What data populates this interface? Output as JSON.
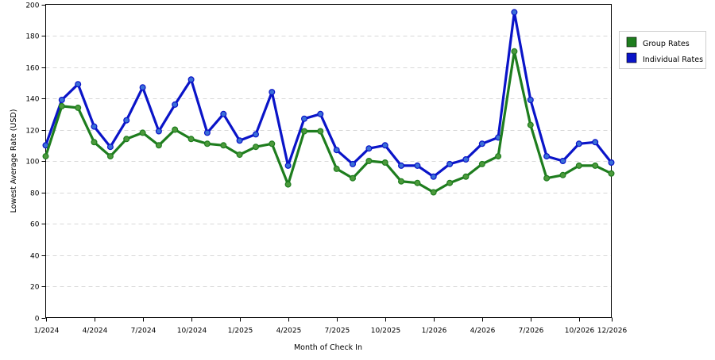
{
  "chart_data": {
    "type": "line",
    "title": "",
    "xlabel": "Month of Check In",
    "ylabel": "Lowest Average Rate (USD)",
    "ylim": [
      0,
      200
    ],
    "yticks": [
      0,
      20,
      40,
      60,
      80,
      100,
      120,
      140,
      160,
      180,
      200
    ],
    "grid": true,
    "legend_position": "right",
    "x": [
      "1/2024",
      "2/2024",
      "3/2024",
      "4/2024",
      "5/2024",
      "6/2024",
      "7/2024",
      "8/2024",
      "9/2024",
      "10/2024",
      "11/2024",
      "12/2024",
      "1/2025",
      "2/2025",
      "3/2025",
      "4/2025",
      "5/2025",
      "6/2025",
      "7/2025",
      "8/2025",
      "9/2025",
      "10/2025",
      "11/2025",
      "12/2025",
      "1/2026",
      "2/2026",
      "3/2026",
      "4/2026",
      "5/2026",
      "6/2026",
      "7/2026",
      "8/2026",
      "9/2026",
      "10/2026",
      "11/2026",
      "12/2026"
    ],
    "xtick_labels": [
      {
        "label": "1/2024",
        "index": 0
      },
      {
        "label": "4/2024",
        "index": 3
      },
      {
        "label": "7/2024",
        "index": 6
      },
      {
        "label": "10/2024",
        "index": 9
      },
      {
        "label": "1/2025",
        "index": 12
      },
      {
        "label": "4/2025",
        "index": 15
      },
      {
        "label": "7/2025",
        "index": 18
      },
      {
        "label": "10/2025",
        "index": 21
      },
      {
        "label": "1/2026",
        "index": 24
      },
      {
        "label": "4/2026",
        "index": 27
      },
      {
        "label": "7/2026",
        "index": 30
      },
      {
        "label": "10/2026",
        "index": 33
      },
      {
        "label": "12/2026",
        "index": 35
      }
    ],
    "series": [
      {
        "name": "Group Rates",
        "color": "#1e7d1e",
        "marker_color": "#4c9a3c",
        "values": [
          103,
          135,
          134,
          112,
          103,
          114,
          118,
          110,
          120,
          114,
          111,
          110,
          104,
          109,
          111,
          85,
          119,
          119,
          95,
          89,
          100,
          99,
          87,
          86,
          80,
          86,
          90,
          98,
          103,
          170,
          123,
          89,
          91,
          97,
          97,
          92
        ]
      },
      {
        "name": "Individual Rates",
        "color": "#0a14c8",
        "marker_color": "#3a6fd8",
        "values": [
          110,
          139,
          149,
          122,
          109,
          126,
          147,
          119,
          136,
          152,
          118,
          130,
          113,
          117,
          144,
          97,
          127,
          130,
          107,
          98,
          108,
          110,
          97,
          97,
          90,
          98,
          101,
          111,
          115,
          195,
          139,
          103,
          100,
          111,
          112,
          99
        ]
      }
    ]
  }
}
